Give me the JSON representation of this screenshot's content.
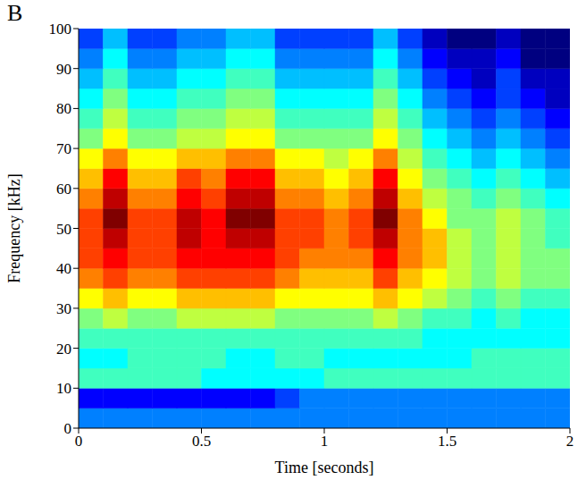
{
  "chart_data": {
    "type": "heatmap",
    "title": "B",
    "xlabel": "Time [seconds]",
    "ylabel": "Frequency [kHz]",
    "x_bins": [
      0,
      0.1,
      0.2,
      0.3,
      0.4,
      0.5,
      0.6,
      0.7,
      0.8,
      0.9,
      1,
      1.1,
      1.2,
      1.3,
      1.4,
      1.5,
      1.6,
      1.7,
      1.8,
      1.9,
      2
    ],
    "y_bins": [
      0,
      5,
      10,
      15,
      20,
      25,
      30,
      35,
      40,
      45,
      50,
      55,
      60,
      65,
      70,
      75,
      80,
      85,
      90,
      95,
      100
    ],
    "cells": [
      [
        3,
        3,
        3,
        3,
        3,
        3,
        3,
        3,
        3,
        3,
        3,
        3,
        3,
        3,
        3,
        3,
        3,
        3,
        3,
        3
      ],
      [
        2,
        2,
        2,
        2,
        2,
        2,
        2,
        2,
        2.5,
        3,
        3,
        3,
        3,
        3,
        3,
        3,
        3,
        3,
        3,
        3
      ],
      [
        4.5,
        4.5,
        4.5,
        4.5,
        4.5,
        4,
        4,
        4,
        4,
        4,
        4.5,
        4.5,
        4.5,
        4.5,
        4.5,
        4.5,
        4.5,
        4.5,
        4.5,
        4.5
      ],
      [
        4,
        4,
        4.5,
        4.5,
        4.5,
        4.5,
        4,
        4,
        4.5,
        4.5,
        4,
        4,
        4,
        4,
        4,
        4,
        4.5,
        4.5,
        4.5,
        4.5
      ],
      [
        4.5,
        4.5,
        4.5,
        4.5,
        4.5,
        4.5,
        4.5,
        4.5,
        4.5,
        4.5,
        4.5,
        4.5,
        4.5,
        4.5,
        4,
        4,
        4,
        4,
        4,
        4
      ],
      [
        5,
        5.5,
        5,
        5,
        5.5,
        5.5,
        5.5,
        5.5,
        5,
        5,
        5,
        5,
        5.5,
        5,
        4.5,
        4.5,
        4,
        4.5,
        4,
        4
      ],
      [
        6,
        6.5,
        6,
        6,
        6.5,
        6.5,
        6.5,
        6.5,
        6,
        6,
        6,
        6,
        6.5,
        6,
        5.5,
        5,
        4.5,
        5,
        4.5,
        4.5
      ],
      [
        7,
        7.5,
        7,
        7,
        7.5,
        7.5,
        7.5,
        7.5,
        7,
        6.5,
        6.5,
        6.5,
        7.5,
        6.5,
        6,
        5.5,
        5,
        5.5,
        5,
        5
      ],
      [
        7.5,
        8,
        7.5,
        7.5,
        8,
        8,
        8,
        8,
        7.5,
        7,
        7,
        7,
        8,
        7,
        6.5,
        5.5,
        5,
        5.5,
        5,
        5
      ],
      [
        7.5,
        8.5,
        7.5,
        7.5,
        8.5,
        8,
        8.5,
        8.5,
        7.5,
        7.5,
        7,
        7.5,
        8.5,
        7,
        6.5,
        5.5,
        5,
        5.5,
        5,
        4.5
      ],
      [
        7.5,
        9,
        7.5,
        7.5,
        8.5,
        8,
        9,
        9,
        7.5,
        7.5,
        7,
        7.5,
        9,
        7,
        6,
        5,
        5,
        5.5,
        5,
        4.5
      ],
      [
        7,
        8.5,
        7,
        7,
        8,
        7.5,
        8.5,
        8.5,
        7,
        7,
        6.5,
        7,
        8.5,
        6.5,
        5.5,
        5,
        4.5,
        5,
        4.5,
        4
      ],
      [
        6.5,
        8,
        6.5,
        6.5,
        7.5,
        7,
        8,
        8,
        6.5,
        6.5,
        6,
        6.5,
        8,
        6,
        5,
        4.5,
        4,
        4.5,
        4,
        3.5
      ],
      [
        6,
        7,
        6,
        6,
        6.5,
        6.5,
        7,
        7,
        6,
        6,
        5.5,
        6,
        7,
        5.5,
        4.5,
        4,
        3.5,
        4,
        3.5,
        3
      ],
      [
        5,
        6,
        5,
        5,
        5.5,
        5.5,
        6,
        6,
        5,
        5,
        5,
        5,
        6,
        5,
        4,
        3.5,
        3,
        3.5,
        3,
        2.5
      ],
      [
        4.5,
        5.5,
        4.5,
        4.5,
        5,
        5,
        5.5,
        5.5,
        4.5,
        4.5,
        4.5,
        4.5,
        5.5,
        4.5,
        3.5,
        3,
        2.5,
        3,
        2.5,
        2
      ],
      [
        4,
        5,
        4,
        4,
        4.5,
        4.5,
        5,
        5,
        4,
        4,
        4,
        4,
        5,
        4,
        3,
        2.5,
        2,
        2.5,
        2,
        1.5
      ],
      [
        3.5,
        4.5,
        3.5,
        3.5,
        4,
        4,
        4.5,
        4.5,
        3.5,
        3.5,
        3.5,
        3.5,
        4.5,
        3.5,
        2.5,
        2,
        1.5,
        2.5,
        1.5,
        1.5
      ],
      [
        3,
        4,
        3,
        3,
        3.5,
        3.5,
        4,
        4,
        3,
        3,
        3,
        3,
        4,
        3,
        2,
        1.5,
        1.5,
        2,
        1,
        1
      ],
      [
        2.5,
        3.5,
        2.5,
        2.5,
        3,
        3,
        3.5,
        3.5,
        2.5,
        2.5,
        2.5,
        2.5,
        3.5,
        2.5,
        1.5,
        1,
        1,
        1.5,
        1,
        1
      ]
    ],
    "xlim": [
      0,
      2
    ],
    "ylim": [
      0,
      100
    ],
    "xticks": [
      0,
      0.5,
      1,
      1.5,
      2
    ],
    "yticks": [
      0,
      10,
      20,
      30,
      40,
      50,
      60,
      70,
      80,
      90,
      100
    ],
    "grid": false
  }
}
